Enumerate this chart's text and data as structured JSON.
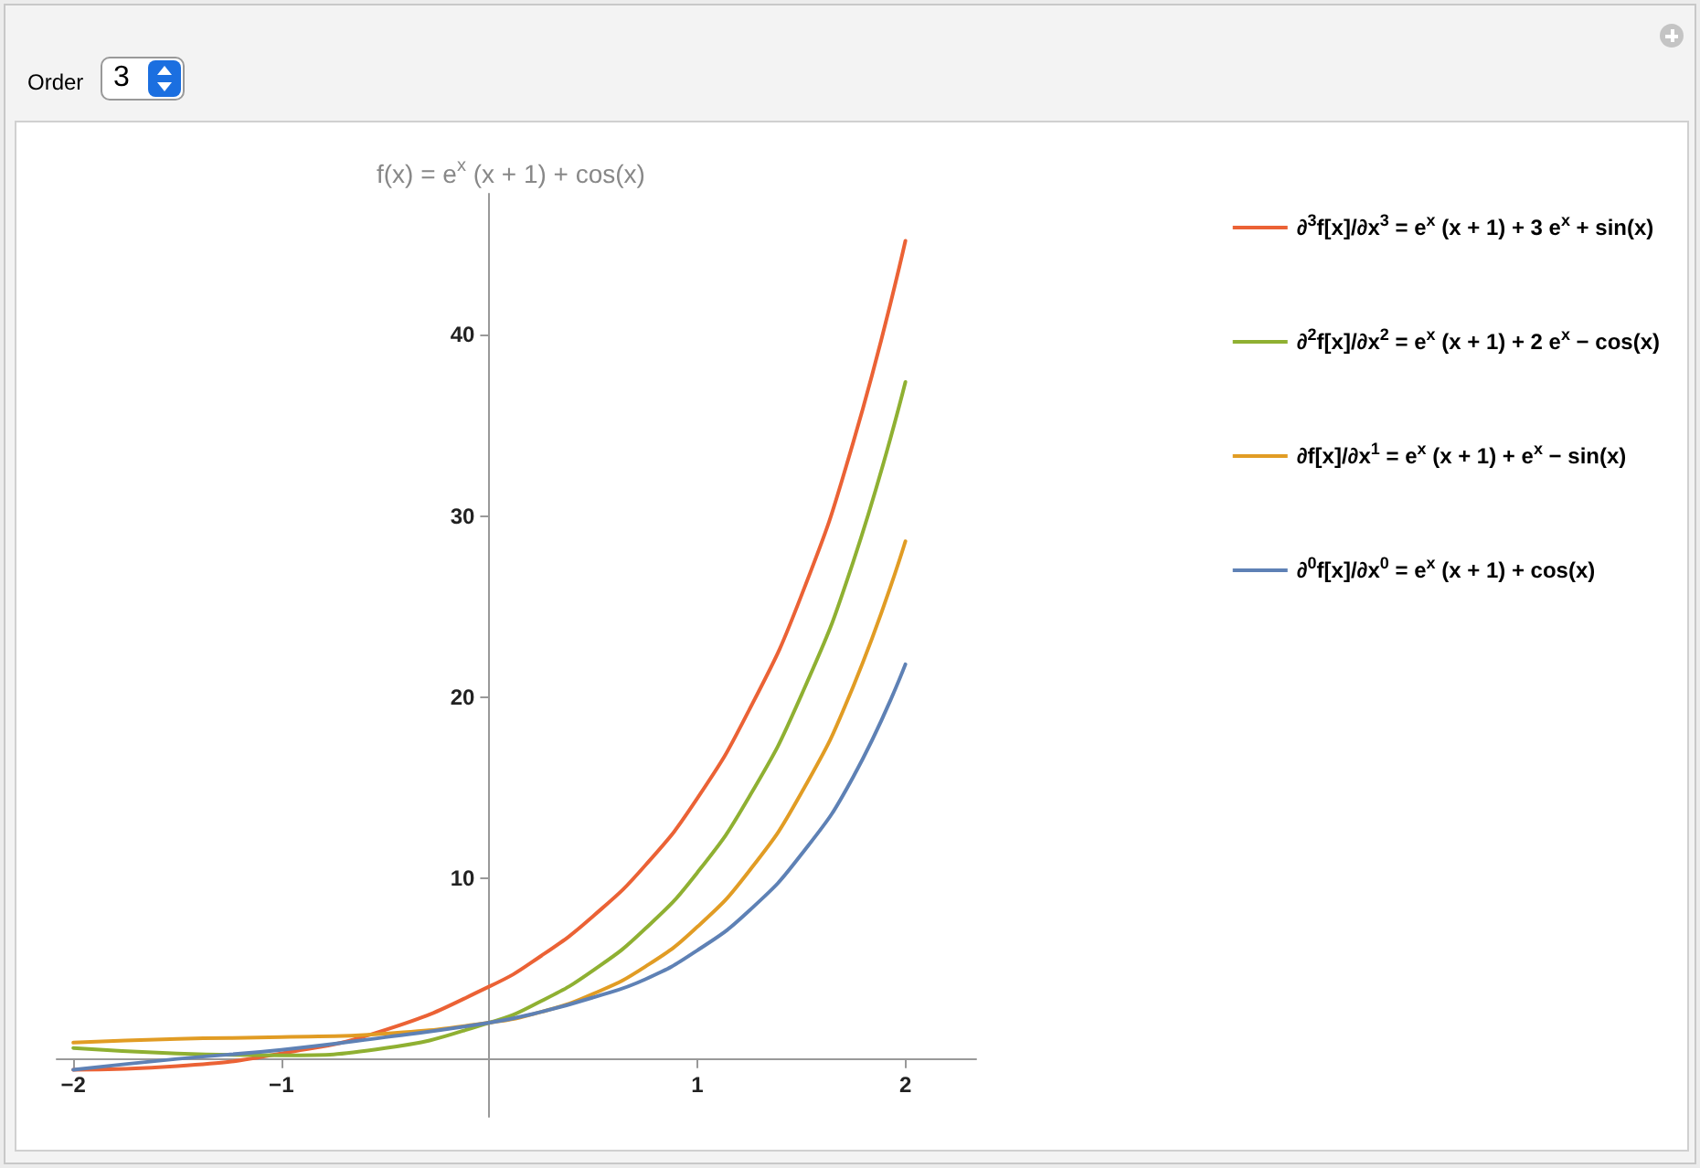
{
  "chart_data": {
    "type": "line",
    "title": "f(x) = e$^{x}$ (x + 1) + cos(x)",
    "annotations": [
      "Order",
      "3"
    ],
    "x": [
      -2,
      -1.5,
      -1,
      -0.5,
      0,
      0.25,
      0.5,
      0.75,
      1,
      1.25,
      1.5,
      1.75,
      2
    ],
    "series": [
      {
        "name": "∂$^{3}$f[x]/∂x$^{3}$ = e$^{x}$ (x + 1) + 3 e$^{x}$ + sin(x)",
        "color": "#eb6235",
        "values": [
          -0.6,
          -0.4,
          0.3,
          1.6,
          4,
          5.7,
          7.9,
          10.7,
          14.4,
          19.3,
          25.6,
          34.1,
          45.2
        ]
      },
      {
        "name": "∂$^{2}$f[x]/∂x$^{2}$ = e$^{x}$ (x + 1) + 2 e$^{x}$ − cos(x)",
        "color": "#8fb032",
        "values": [
          0.6,
          0.3,
          0.2,
          0.6,
          2,
          3.2,
          4.9,
          7.2,
          10.3,
          14.5,
          20.1,
          27.5,
          37.4
        ]
      },
      {
        "name": "∂f[x]/∂x$^{1}$ = e$^{x}$ (x + 1) + e$^{x}$ − sin(x)",
        "color": "#e19c24",
        "values": [
          0.9,
          1.1,
          1.2,
          1.4,
          2,
          2.6,
          3.6,
          5.1,
          7.3,
          10.4,
          14.7,
          20.6,
          28.6
        ]
      },
      {
        "name": "∂$^{0}$f[x]/∂x$^{0}$ = e$^{x}$ (x + 1) + cos(x)",
        "color": "#5e81b5",
        "values": [
          -0.6,
          0,
          0.5,
          1.2,
          2,
          2.6,
          3.4,
          4.4,
          6,
          8.2,
          11.3,
          15.6,
          21.8
        ]
      }
    ],
    "xlim": [
      -2.08,
      2.34
    ],
    "ylim": [
      -3.2,
      47.8
    ],
    "xticks": [
      -2,
      -1,
      1,
      2
    ],
    "yticks": [
      10,
      20,
      30,
      40
    ],
    "legend": "right",
    "grid": false,
    "marker": "none",
    "line_style": "solid"
  }
}
